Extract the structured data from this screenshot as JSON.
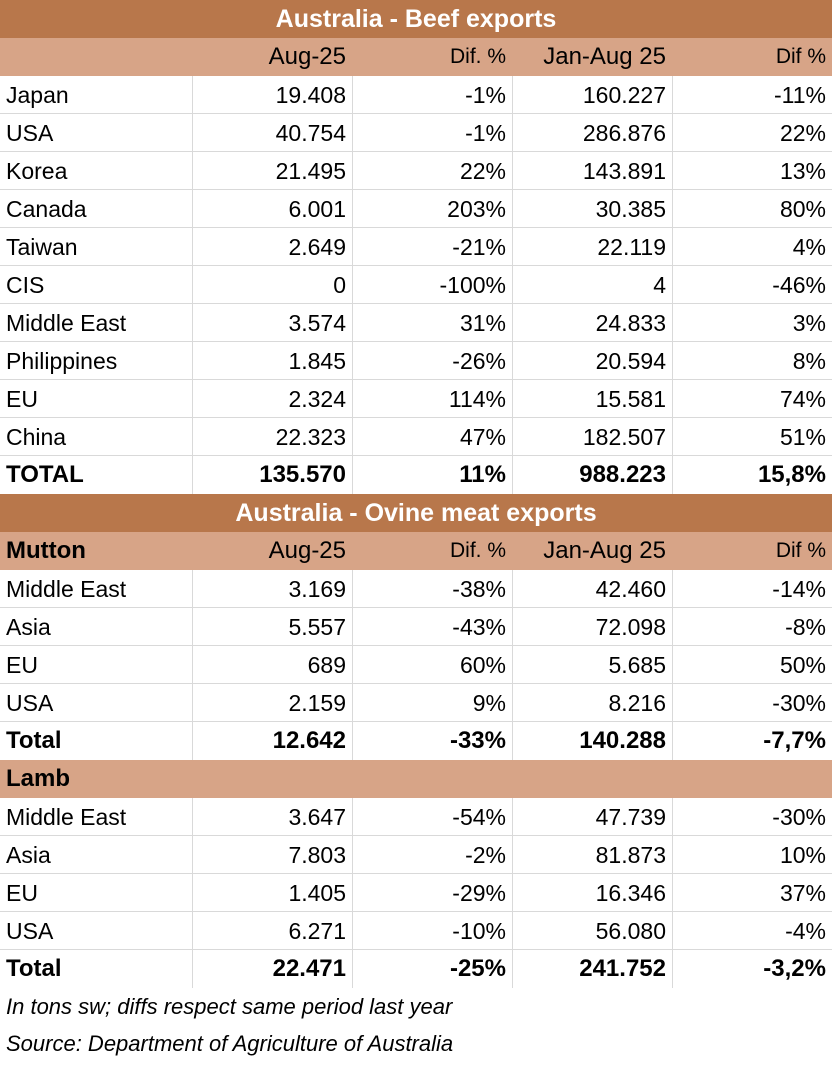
{
  "beef": {
    "title": "Australia - Beef exports",
    "columns": [
      "Aug-25",
      "Dif. %",
      "Jan-Aug 25",
      "Dif %"
    ],
    "rows": [
      [
        "Japan",
        "19.408",
        "-1%",
        "160.227",
        "-11%"
      ],
      [
        "USA",
        "40.754",
        "-1%",
        "286.876",
        "22%"
      ],
      [
        "Korea",
        "21.495",
        "22%",
        "143.891",
        "13%"
      ],
      [
        "Canada",
        "6.001",
        "203%",
        "30.385",
        "80%"
      ],
      [
        "Taiwan",
        "2.649",
        "-21%",
        "22.119",
        "4%"
      ],
      [
        "CIS",
        "0",
        "-100%",
        "4",
        "-46%"
      ],
      [
        "Middle East",
        "3.574",
        "31%",
        "24.833",
        "3%"
      ],
      [
        "Philippines",
        "1.845",
        "-26%",
        "20.594",
        "8%"
      ],
      [
        "EU",
        "2.324",
        "114%",
        "15.581",
        "74%"
      ],
      [
        "China",
        "22.323",
        "47%",
        "182.507",
        "51%"
      ]
    ],
    "total": [
      "TOTAL",
      "135.570",
      "11%",
      "988.223",
      "15,8%"
    ]
  },
  "ovine": {
    "title": "Australia - Ovine meat exports",
    "sections": [
      {
        "name": "Mutton",
        "columns": [
          "Aug-25",
          "Dif. %",
          "Jan-Aug 25",
          "Dif %"
        ],
        "rows": [
          [
            "Middle East",
            "3.169",
            "-38%",
            "42.460",
            "-14%"
          ],
          [
            "Asia",
            "5.557",
            "-43%",
            "72.098",
            "-8%"
          ],
          [
            "EU",
            "689",
            "60%",
            "5.685",
            "50%"
          ],
          [
            "USA",
            "2.159",
            "9%",
            "8.216",
            "-30%"
          ]
        ],
        "total": [
          "Total",
          "12.642",
          "-33%",
          "140.288",
          "-7,7%"
        ]
      },
      {
        "name": "Lamb",
        "rows": [
          [
            "Middle East",
            "3.647",
            "-54%",
            "47.739",
            "-30%"
          ],
          [
            "Asia",
            "7.803",
            "-2%",
            "81.873",
            "10%"
          ],
          [
            "EU",
            "1.405",
            "-29%",
            "16.346",
            "37%"
          ],
          [
            "USA",
            "6.271",
            "-10%",
            "56.080",
            "-4%"
          ]
        ],
        "total": [
          "Total",
          "22.471",
          "-25%",
          "241.752",
          "-3,2%"
        ]
      }
    ]
  },
  "notes": [
    "In tons sw; diffs respect same period last year",
    "Source: Department of Agriculture of Australia"
  ]
}
